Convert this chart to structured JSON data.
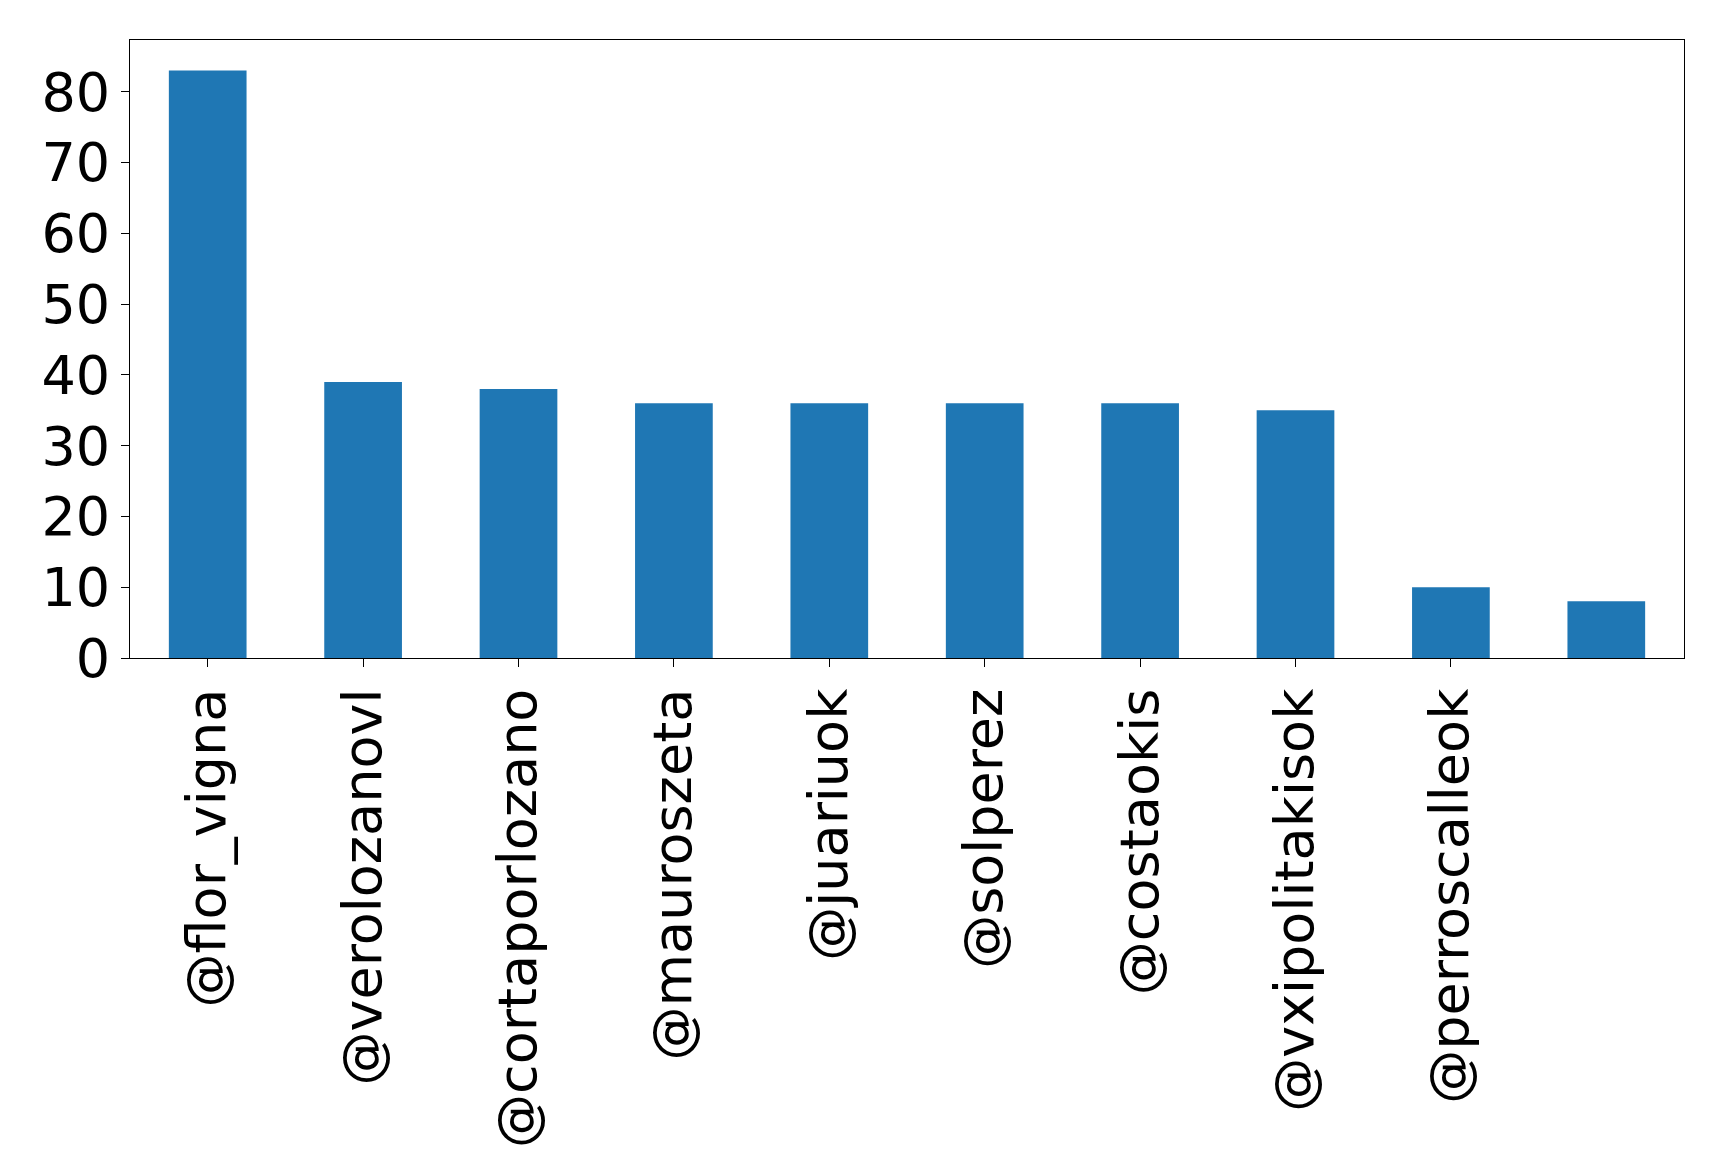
{
  "chart_data": {
    "type": "bar",
    "categories": [
      "@flor_vigna",
      "@verolozanovl",
      "@cortaporlozano",
      "@mauroszeta",
      "@juariuok",
      "@solperez",
      "@costaokis",
      "@vxipolitakisok",
      "@perroscalleok",
      null
    ],
    "values": [
      83,
      39,
      38,
      36,
      36,
      36,
      36,
      35,
      10,
      8
    ],
    "color": "#1f77b4",
    "ylim": [
      0,
      87.3
    ],
    "yticks": [
      0,
      10,
      20,
      30,
      40,
      50,
      60,
      70,
      80
    ]
  }
}
